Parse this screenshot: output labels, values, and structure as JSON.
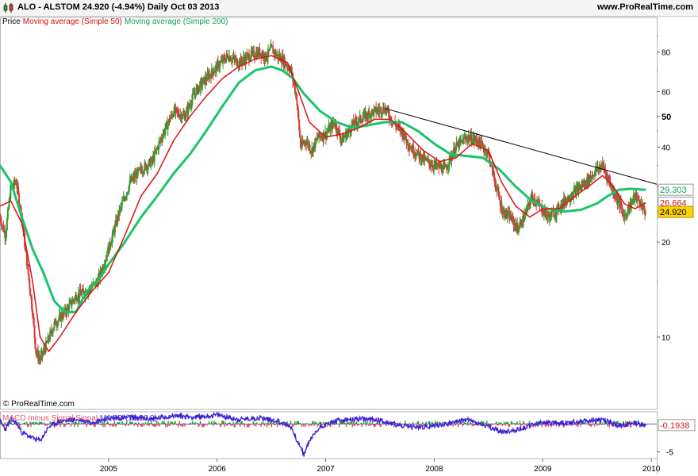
{
  "header": {
    "title": "ALO - ALSTOM   24.920 (-4.94%)   Daily  Oct 03 2013",
    "site": "www.ProRealTime.com"
  },
  "legend": {
    "price": "Price",
    "ma50": "Moving average (Simple 50)",
    "ma200": "Moving average (Simple 200)"
  },
  "watermark": "© ProRealTime.com",
  "macd_legend": {
    "hist": "MACD minus Signal Signal",
    "macd": "MACD (12,26,9)"
  },
  "colors": {
    "up": "#2ea02e",
    "down": "#d23c3c",
    "ma50": "#e01010",
    "ma200": "#19c46a",
    "trendline": "#000000",
    "macd": "#3b1fd6",
    "signal_hist": "#e0506a",
    "axis_text": "#000000",
    "last_price_box": "#ffd200",
    "ma50_box_text": "#cc1010",
    "ma200_box_text": "#0aa35a"
  },
  "chart_data": [
    {
      "type": "candlestick",
      "title": "ALO - ALSTOM",
      "scale": "log",
      "y_ticks": [
        10,
        20,
        30,
        40,
        50,
        60,
        80
      ],
      "y_tick_labels": [
        "10",
        "20",
        "",
        "40",
        "50",
        "60",
        "80"
      ],
      "ylim": [
        5.9,
        95
      ],
      "x_ticks": [
        "2005",
        "2006",
        "2007",
        "2008",
        "2009",
        "2010"
      ],
      "x_range": [
        2004.0,
        2010.05
      ],
      "last_price": 24.92,
      "last_change_pct": -4.94,
      "ma50_last": 26.664,
      "ma200_last": 29.303,
      "price_path": [
        [
          2004.0,
          24.0
        ],
        [
          2004.05,
          21.0
        ],
        [
          2004.1,
          30.0
        ],
        [
          2004.15,
          31.0
        ],
        [
          2004.2,
          24.0
        ],
        [
          2004.25,
          17.0
        ],
        [
          2004.3,
          12.0
        ],
        [
          2004.33,
          9.0
        ],
        [
          2004.37,
          8.5
        ],
        [
          2004.43,
          9.5
        ],
        [
          2004.5,
          11.0
        ],
        [
          2004.6,
          12.0
        ],
        [
          2004.7,
          13.5
        ],
        [
          2004.8,
          14.0
        ],
        [
          2004.9,
          15.0
        ],
        [
          2005.0,
          19.0
        ],
        [
          2005.1,
          25.0
        ],
        [
          2005.2,
          31.0
        ],
        [
          2005.3,
          34.0
        ],
        [
          2005.4,
          36.0
        ],
        [
          2005.5,
          44.0
        ],
        [
          2005.6,
          52.0
        ],
        [
          2005.7,
          50.0
        ],
        [
          2005.8,
          60.0
        ],
        [
          2005.9,
          66.0
        ],
        [
          2006.0,
          72.0
        ],
        [
          2006.1,
          78.0
        ],
        [
          2006.2,
          74.0
        ],
        [
          2006.3,
          78.0
        ],
        [
          2006.4,
          80.0
        ],
        [
          2006.45,
          77.0
        ],
        [
          2006.5,
          82.0
        ],
        [
          2006.55,
          78.0
        ],
        [
          2006.6,
          76.0
        ],
        [
          2006.68,
          70.0
        ],
        [
          2006.73,
          58.0
        ],
        [
          2006.77,
          40.0
        ],
        [
          2006.82,
          42.0
        ],
        [
          2006.87,
          39.0
        ],
        [
          2006.93,
          43.0
        ],
        [
          2007.0,
          44.0
        ],
        [
          2007.08,
          48.0
        ],
        [
          2007.15,
          42.0
        ],
        [
          2007.25,
          47.0
        ],
        [
          2007.35,
          50.0
        ],
        [
          2007.45,
          52.0
        ],
        [
          2007.55,
          53.0
        ],
        [
          2007.62,
          48.0
        ],
        [
          2007.7,
          45.0
        ],
        [
          2007.78,
          40.0
        ],
        [
          2007.85,
          38.0
        ],
        [
          2007.93,
          36.0
        ],
        [
          2008.0,
          35.0
        ],
        [
          2008.1,
          34.0
        ],
        [
          2008.2,
          40.0
        ],
        [
          2008.3,
          43.0
        ],
        [
          2008.4,
          42.0
        ],
        [
          2008.5,
          38.0
        ],
        [
          2008.57,
          30.0
        ],
        [
          2008.63,
          25.0
        ],
        [
          2008.7,
          24.0
        ],
        [
          2008.77,
          22.0
        ],
        [
          2008.83,
          24.0
        ],
        [
          2008.9,
          28.0
        ],
        [
          2008.97,
          26.0
        ],
        [
          2009.05,
          24.0
        ],
        [
          2009.12,
          25.0
        ],
        [
          2009.2,
          27.0
        ],
        [
          2009.3,
          29.0
        ],
        [
          2009.4,
          31.0
        ],
        [
          2009.5,
          34.0
        ],
        [
          2009.55,
          35.0
        ],
        [
          2009.6,
          32.0
        ],
        [
          2009.65,
          29.0
        ],
        [
          2009.7,
          27.0
        ],
        [
          2009.75,
          24.0
        ],
        [
          2009.8,
          26.0
        ],
        [
          2009.85,
          28.0
        ],
        [
          2009.9,
          26.5
        ],
        [
          2009.95,
          24.92
        ]
      ],
      "series": [
        {
          "name": "Moving average (Simple 50)",
          "points": [
            [
              2004.0,
              26.0
            ],
            [
              2004.1,
              27.0
            ],
            [
              2004.2,
              23.0
            ],
            [
              2004.3,
              15.0
            ],
            [
              2004.37,
              10.0
            ],
            [
              2004.45,
              9.0
            ],
            [
              2004.55,
              10.0
            ],
            [
              2004.7,
              12.0
            ],
            [
              2004.85,
              14.0
            ],
            [
              2005.0,
              16.0
            ],
            [
              2005.15,
              21.0
            ],
            [
              2005.3,
              28.0
            ],
            [
              2005.45,
              33.0
            ],
            [
              2005.6,
              42.0
            ],
            [
              2005.75,
              50.0
            ],
            [
              2005.9,
              58.0
            ],
            [
              2006.05,
              66.0
            ],
            [
              2006.2,
              72.0
            ],
            [
              2006.35,
              76.0
            ],
            [
              2006.5,
              78.0
            ],
            [
              2006.65,
              74.0
            ],
            [
              2006.75,
              60.0
            ],
            [
              2006.85,
              48.0
            ],
            [
              2007.0,
              43.0
            ],
            [
              2007.15,
              44.0
            ],
            [
              2007.3,
              46.0
            ],
            [
              2007.45,
              49.0
            ],
            [
              2007.6,
              49.0
            ],
            [
              2007.75,
              44.0
            ],
            [
              2007.9,
              39.0
            ],
            [
              2008.05,
              36.0
            ],
            [
              2008.2,
              37.0
            ],
            [
              2008.35,
              41.0
            ],
            [
              2008.5,
              39.0
            ],
            [
              2008.62,
              31.0
            ],
            [
              2008.75,
              26.0
            ],
            [
              2008.88,
              24.0
            ],
            [
              2009.0,
              25.5
            ],
            [
              2009.15,
              25.5
            ],
            [
              2009.3,
              28.0
            ],
            [
              2009.45,
              30.5
            ],
            [
              2009.55,
              32.5
            ],
            [
              2009.65,
              30.0
            ],
            [
              2009.75,
              26.5
            ],
            [
              2009.85,
              25.5
            ],
            [
              2009.95,
              26.664
            ]
          ]
        },
        {
          "name": "Moving average (Simple 200)",
          "points": [
            [
              2004.0,
              35.0
            ],
            [
              2004.1,
              31.0
            ],
            [
              2004.2,
              24.0
            ],
            [
              2004.3,
              19.0
            ],
            [
              2004.4,
              16.0
            ],
            [
              2004.5,
              13.0
            ],
            [
              2004.6,
              12.0
            ],
            [
              2004.7,
              12.0
            ],
            [
              2004.8,
              14.0
            ],
            [
              2004.9,
              15.0
            ],
            [
              2005.0,
              17.0
            ],
            [
              2005.15,
              20.0
            ],
            [
              2005.3,
              24.0
            ],
            [
              2005.45,
              28.0
            ],
            [
              2005.6,
              33.0
            ],
            [
              2005.75,
              38.0
            ],
            [
              2005.9,
              45.0
            ],
            [
              2006.05,
              54.0
            ],
            [
              2006.2,
              64.0
            ],
            [
              2006.35,
              70.0
            ],
            [
              2006.5,
              72.0
            ],
            [
              2006.6,
              70.0
            ],
            [
              2006.7,
              66.0
            ],
            [
              2006.8,
              59.0
            ],
            [
              2006.95,
              52.0
            ],
            [
              2007.1,
              48.0
            ],
            [
              2007.25,
              46.0
            ],
            [
              2007.4,
              47.0
            ],
            [
              2007.55,
              48.0
            ],
            [
              2007.7,
              48.0
            ],
            [
              2007.85,
              45.0
            ],
            [
              2008.0,
              41.0
            ],
            [
              2008.15,
              38.0
            ],
            [
              2008.3,
              37.5
            ],
            [
              2008.45,
              37.0
            ],
            [
              2008.6,
              34.0
            ],
            [
              2008.75,
              30.0
            ],
            [
              2008.9,
              27.0
            ],
            [
              2009.05,
              25.5
            ],
            [
              2009.2,
              25.0
            ],
            [
              2009.35,
              25.3
            ],
            [
              2009.5,
              26.5
            ],
            [
              2009.6,
              28.0
            ],
            [
              2009.7,
              29.3
            ],
            [
              2009.8,
              29.5
            ],
            [
              2009.95,
              29.303
            ]
          ]
        }
      ],
      "trendline": [
        [
          2007.55,
          53.0
        ],
        [
          2010.05,
          30.5
        ]
      ]
    },
    {
      "type": "line",
      "title": "MACD (12,26,9)",
      "y_ticks": [
        -5
      ],
      "ylim": [
        -6.2,
        2.2
      ],
      "last_value": -0.1938,
      "macd_path": [
        [
          2004.0,
          0.5
        ],
        [
          2004.05,
          -1.0
        ],
        [
          2004.1,
          0.8
        ],
        [
          2004.15,
          0.2
        ],
        [
          2004.2,
          -1.5
        ],
        [
          2004.3,
          -2.5
        ],
        [
          2004.37,
          -3.0
        ],
        [
          2004.45,
          -0.5
        ],
        [
          2004.55,
          0.5
        ],
        [
          2004.7,
          0.8
        ],
        [
          2004.85,
          0.4
        ],
        [
          2005.0,
          1.0
        ],
        [
          2005.2,
          1.2
        ],
        [
          2005.4,
          0.9
        ],
        [
          2005.6,
          1.5
        ],
        [
          2005.8,
          1.2
        ],
        [
          2006.0,
          1.6
        ],
        [
          2006.2,
          0.8
        ],
        [
          2006.4,
          1.1
        ],
        [
          2006.55,
          0.6
        ],
        [
          2006.68,
          -0.5
        ],
        [
          2006.75,
          -3.5
        ],
        [
          2006.8,
          -5.5
        ],
        [
          2006.85,
          -3.0
        ],
        [
          2006.95,
          -0.5
        ],
        [
          2007.1,
          0.6
        ],
        [
          2007.3,
          0.9
        ],
        [
          2007.5,
          0.7
        ],
        [
          2007.7,
          -0.4
        ],
        [
          2007.9,
          -0.6
        ],
        [
          2008.1,
          0.0
        ],
        [
          2008.3,
          0.8
        ],
        [
          2008.5,
          -0.6
        ],
        [
          2008.65,
          -1.5
        ],
        [
          2008.8,
          -0.8
        ],
        [
          2009.0,
          0.3
        ],
        [
          2009.2,
          0.2
        ],
        [
          2009.4,
          0.6
        ],
        [
          2009.55,
          0.8
        ],
        [
          2009.7,
          -0.3
        ],
        [
          2009.85,
          0.2
        ],
        [
          2009.95,
          -0.1938
        ]
      ]
    }
  ]
}
